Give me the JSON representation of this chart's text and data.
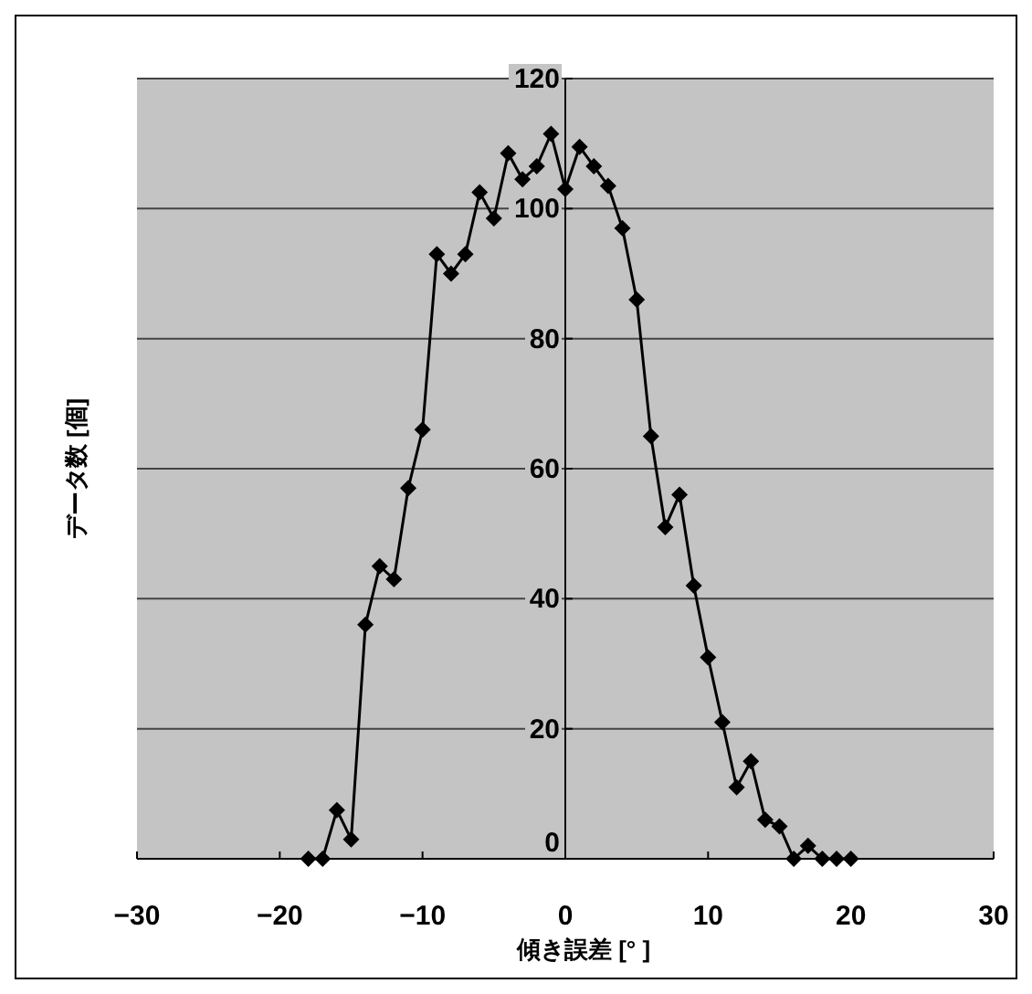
{
  "chart_data": {
    "type": "line",
    "xlabel": "傾き誤差 [° ]",
    "ylabel": "データ数 [個]",
    "x": [
      -18,
      -17,
      -16,
      -15,
      -14,
      -13,
      -12,
      -11,
      -10,
      -9,
      -8,
      -7,
      -6,
      -5,
      -4,
      -3,
      -2,
      -1,
      0,
      1,
      2,
      3,
      4,
      5,
      6,
      7,
      8,
      9,
      10,
      11,
      12,
      13,
      14,
      15,
      16,
      17,
      18,
      19,
      20
    ],
    "series": [
      {
        "color": "#000000",
        "values": [
          0,
          0,
          7.5,
          3,
          36,
          45,
          43,
          57,
          66,
          93,
          90,
          93,
          102.5,
          98.5,
          108.5,
          104.5,
          106.5,
          111.5,
          103,
          109.5,
          106.5,
          103.5,
          97,
          86,
          65,
          51,
          56,
          42,
          31,
          21,
          11,
          15,
          6,
          5,
          0,
          2,
          0,
          0,
          0
        ]
      }
    ],
    "xlim": [
      -30,
      30
    ],
    "xticks": [
      -30,
      -20,
      -10,
      0,
      10,
      20,
      30
    ],
    "ylim": [
      0,
      120
    ],
    "yticks": [
      0,
      20,
      40,
      60,
      80,
      100,
      120
    ],
    "grid": "y",
    "marker": "diamond",
    "line_style": "solid"
  }
}
